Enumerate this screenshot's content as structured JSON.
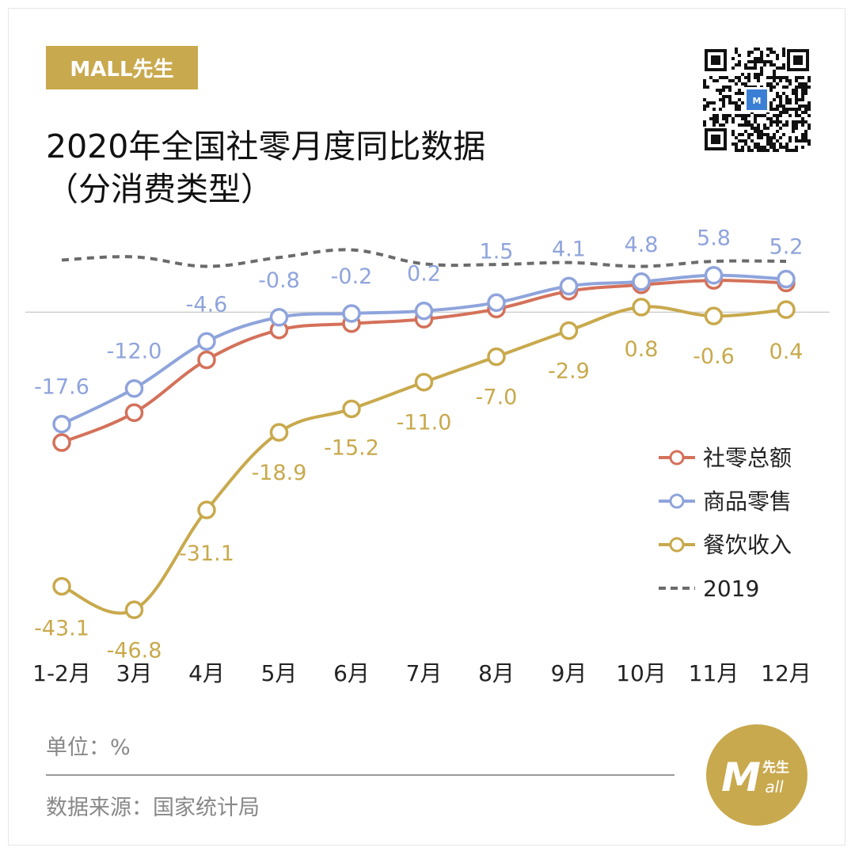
{
  "brand": {
    "label": "MALL先生"
  },
  "title": {
    "line1": "2020年全国社零月度同比数据",
    "line2": "（分消费类型）"
  },
  "footer": {
    "unit": "单位：%",
    "source": "数据来源：国家统计局"
  },
  "logo": {
    "main": "M",
    "suffix": "all",
    "tag": "先生"
  },
  "colors": {
    "retail_total": "#d4715a",
    "goods_retail": "#8fa4dc",
    "catering": "#c8a94c",
    "baseline_2019": "#6b6b6b",
    "brand": "#c9a94e"
  },
  "chart_data": {
    "type": "line",
    "title": "2020年全国社零月度同比数据（分消费类型）",
    "categories": [
      "1-2月",
      "3月",
      "4月",
      "5月",
      "6月",
      "7月",
      "8月",
      "9月",
      "10月",
      "11月",
      "12月"
    ],
    "series": [
      {
        "name": "社零总额",
        "values": [
          -20.5,
          -15.8,
          -7.5,
          -2.8,
          -1.8,
          -1.1,
          0.5,
          3.3,
          4.3,
          5.0,
          4.6
        ],
        "labeled": false
      },
      {
        "name": "商品零售",
        "values": [
          -17.6,
          -12.0,
          -4.6,
          -0.8,
          -0.2,
          0.2,
          1.5,
          4.1,
          4.8,
          5.8,
          5.2
        ],
        "labeled": true,
        "labels": [
          "-17.6",
          "-12.0",
          "-4.6",
          "-0.8",
          "-0.2",
          "0.2",
          "1.5",
          "4.1",
          "4.8",
          "5.8",
          "5.2"
        ]
      },
      {
        "name": "餐饮收入",
        "values": [
          -43.1,
          -46.8,
          -31.1,
          -18.9,
          -15.2,
          -11.0,
          -7.0,
          -2.9,
          0.8,
          -0.6,
          0.4
        ],
        "labeled": true,
        "labels": [
          "-43.1",
          "-46.8",
          "-31.1",
          "-18.9",
          "-15.2",
          "-11.0",
          "-7.0",
          "-2.9",
          "0.8",
          "-0.6",
          "0.4"
        ]
      },
      {
        "name": "2019",
        "values": [
          8.2,
          8.7,
          7.2,
          8.6,
          9.8,
          7.6,
          7.5,
          7.8,
          7.2,
          8.0,
          8.0
        ],
        "style": "dashed",
        "labeled": false
      }
    ],
    "ylim": [
      -50,
      10
    ],
    "zero_line": true,
    "legend": [
      "社零总额",
      "商品零售",
      "餐饮收入",
      "2019"
    ],
    "legend_position": "right-middle",
    "unit": "%"
  }
}
